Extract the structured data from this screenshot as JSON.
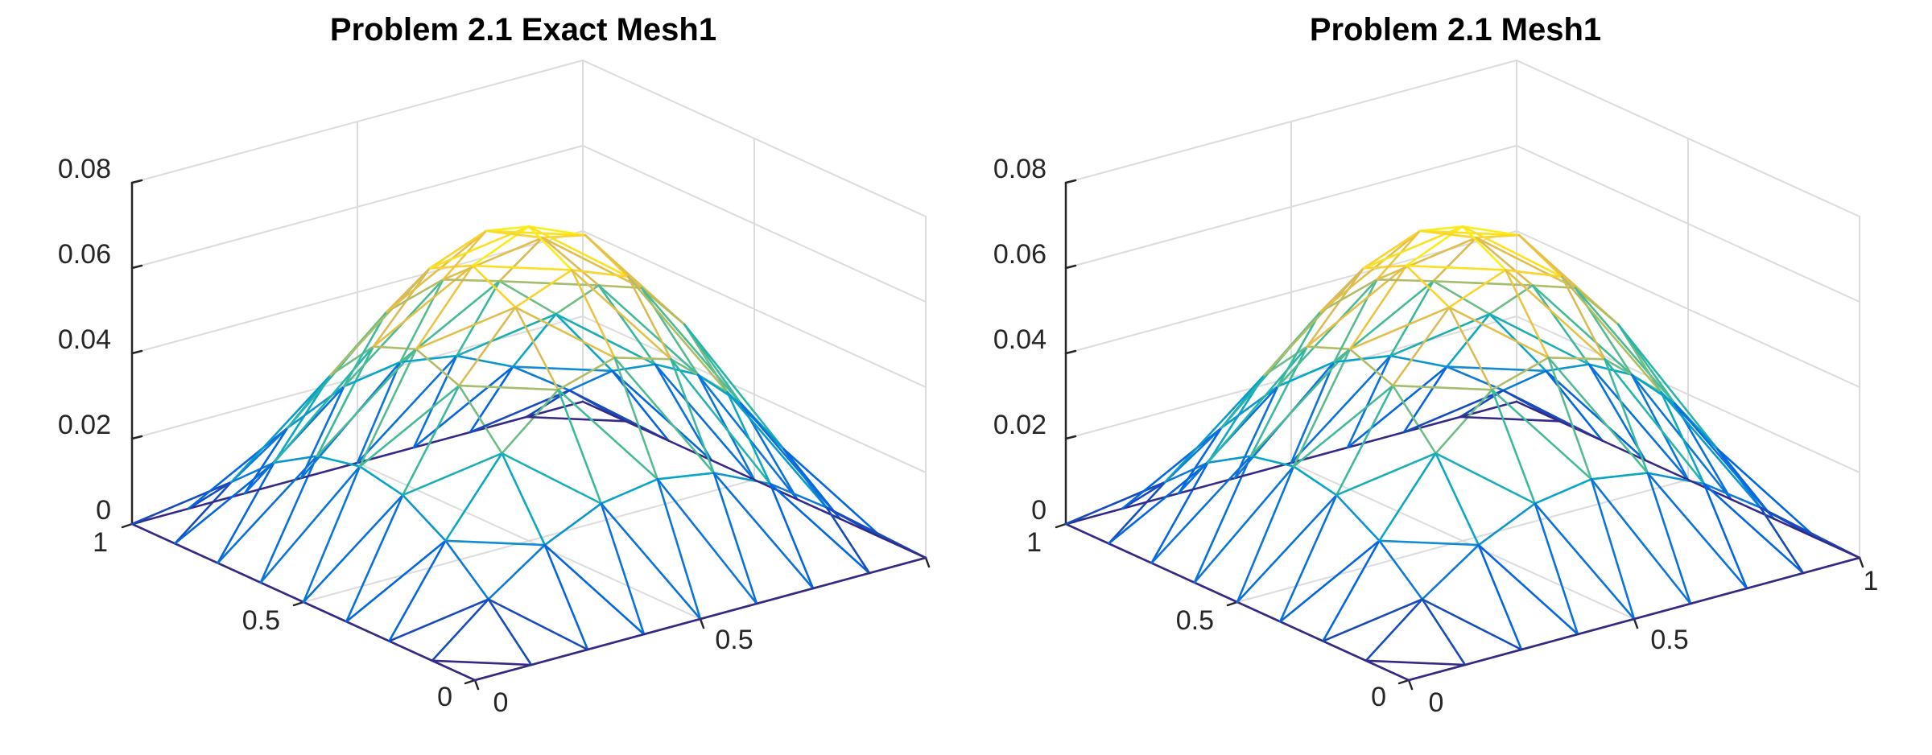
{
  "chart_data": [
    {
      "type": "surface-mesh",
      "title": "Problem 2.1 Exact Mesh1",
      "xlim": [
        0,
        1
      ],
      "ylim": [
        0,
        1
      ],
      "zlim": [
        0,
        0.08
      ],
      "x_ticks": [
        "0",
        "0.5"
      ],
      "y_ticks": [
        "0",
        "0.5",
        "1"
      ],
      "z_ticks": [
        "0",
        "0.02",
        "0.04",
        "0.06",
        "0.08"
      ],
      "grid": true,
      "colormap": "parula",
      "grid_resolution": 8,
      "peak_value": 0.0737
    },
    {
      "type": "surface-mesh",
      "title": "Problem 2.1 Mesh1",
      "xlim": [
        0,
        1
      ],
      "ylim": [
        0,
        1
      ],
      "zlim": [
        0,
        0.08
      ],
      "x_ticks": [
        "0",
        "0.5",
        "1"
      ],
      "y_ticks": [
        "0",
        "0.5",
        "1"
      ],
      "z_ticks": [
        "0",
        "0.02",
        "0.04",
        "0.06",
        "0.08"
      ],
      "grid": true,
      "colormap": "parula",
      "grid_resolution": 8,
      "peak_value": 0.0737
    }
  ],
  "colors": {
    "background": "#ffffff",
    "axis": "#262626",
    "gridline": "#dcdcdc",
    "parula": [
      "#352a87",
      "#0363e1",
      "#1485d4",
      "#06a7c6",
      "#38b99e",
      "#92bf73",
      "#d9ba56",
      "#fcce2e",
      "#f9fb0e"
    ]
  }
}
